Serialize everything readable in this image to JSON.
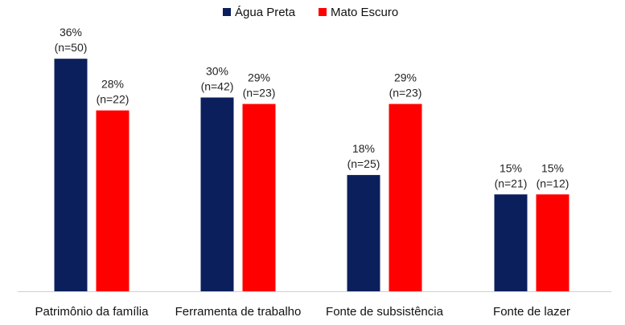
{
  "chart_data": {
    "type": "bar",
    "title": "",
    "xlabel": "",
    "ylabel": "",
    "ylim": [
      0,
      40
    ],
    "grid": false,
    "legend_position": "top-center",
    "categories": [
      "Patrimônio da família",
      "Ferramenta de trabalho",
      "Fonte de subsistência",
      "Fonte de lazer"
    ],
    "series": [
      {
        "name": "Água Preta",
        "color": "#0b1f5c",
        "values": [
          36,
          30,
          18,
          15
        ],
        "labels": [
          "36%",
          "30%",
          "18%",
          "15%"
        ],
        "n_labels": [
          "(n=50)",
          "(n=42)",
          "(n=25)",
          "(n=21)"
        ]
      },
      {
        "name": "Mato Escuro",
        "color": "#ff0000",
        "values": [
          28,
          29,
          29,
          15
        ],
        "labels": [
          "28%",
          "29%",
          "29%",
          "15%"
        ],
        "n_labels": [
          "(n=22)",
          "(n=23)",
          "(n=23)",
          "(n=12)"
        ]
      }
    ]
  }
}
